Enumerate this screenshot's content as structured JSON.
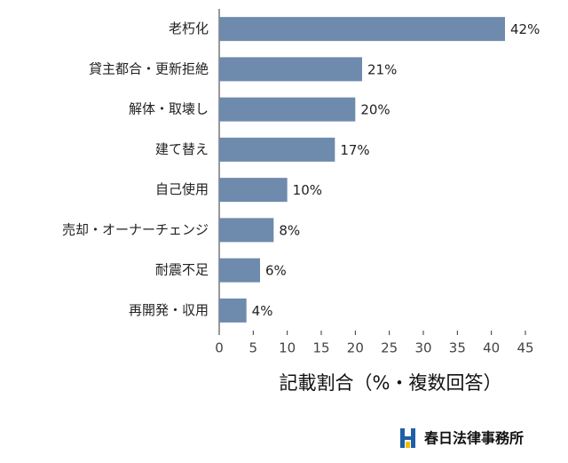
{
  "chart_data": {
    "type": "bar",
    "orientation": "horizontal",
    "categories": [
      "老朽化",
      "貸主都合・更新拒絶",
      "解体・取壊し",
      "建て替え",
      "自己使用",
      "売却・オーナーチェンジ",
      "耐震不足",
      "再開発・収用"
    ],
    "values": [
      42,
      21,
      20,
      17,
      10,
      8,
      6,
      4
    ],
    "value_labels": [
      "42%",
      "21%",
      "20%",
      "17%",
      "10%",
      "8%",
      "6%",
      "4%"
    ],
    "color": "#6e8aad",
    "xlim": [
      0,
      45
    ],
    "xticks": [
      0,
      5,
      10,
      15,
      20,
      25,
      30,
      35,
      40,
      45
    ],
    "x_label": "記載割合（%・複数回答）"
  },
  "logo": {
    "text": "春日法律事務所"
  }
}
